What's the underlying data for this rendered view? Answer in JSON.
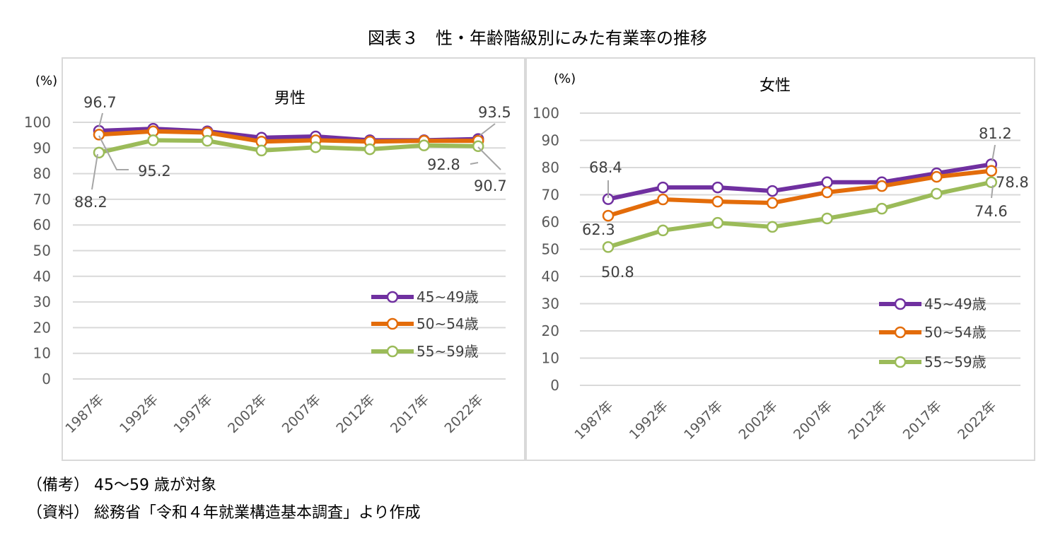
{
  "title": "図表３　性・年齢階級別にみた有業率の推移",
  "notes": [
    "（備考） 45～59 歳が対象",
    "（資料） 総務省「令和４年就業構造基本調査」より作成"
  ],
  "colors": {
    "45~49歳": "#7030a0",
    "50~54歳": "#e36c0a",
    "55~59歳": "#9bbb59",
    "grid": "#d9d9d9"
  },
  "chart_data": [
    {
      "type": "line",
      "title": "男性",
      "ylabel": "(%)",
      "ylim": [
        0,
        100
      ],
      "yticks": [
        0,
        10,
        20,
        30,
        40,
        50,
        60,
        70,
        80,
        90,
        100
      ],
      "grid": true,
      "legend": "bottom-right",
      "categories": [
        "1987年",
        "1992年",
        "1997年",
        "2002年",
        "2007年",
        "2012年",
        "2017年",
        "2022年"
      ],
      "series": [
        {
          "name": "45~49歳",
          "values": [
            96.7,
            97.5,
            96.5,
            94.0,
            94.5,
            93.0,
            93.0,
            93.5
          ]
        },
        {
          "name": "50~54歳",
          "values": [
            95.2,
            96.5,
            96.0,
            92.5,
            93.0,
            92.5,
            92.8,
            92.8
          ]
        },
        {
          "name": "55~59歳",
          "values": [
            88.2,
            93.0,
            92.8,
            89.0,
            90.3,
            89.5,
            91.0,
            90.7
          ]
        }
      ],
      "data_labels": [
        {
          "series": 0,
          "index": 0,
          "text": "96.7"
        },
        {
          "series": 1,
          "index": 0,
          "text": "95.2"
        },
        {
          "series": 2,
          "index": 0,
          "text": "88.2"
        },
        {
          "series": 0,
          "index": 7,
          "text": "93.5"
        },
        {
          "series": 1,
          "index": 7,
          "text": "92.8"
        },
        {
          "series": 2,
          "index": 7,
          "text": "90.7"
        }
      ]
    },
    {
      "type": "line",
      "title": "女性",
      "ylabel": "(%)",
      "ylim": [
        0,
        100
      ],
      "yticks": [
        0,
        10,
        20,
        30,
        40,
        50,
        60,
        70,
        80,
        90,
        100
      ],
      "grid": true,
      "legend": "bottom-right",
      "categories": [
        "1987年",
        "1992年",
        "1997年",
        "2002年",
        "2007年",
        "2012年",
        "2017年",
        "2022年"
      ],
      "series": [
        {
          "name": "45~49歳",
          "values": [
            68.4,
            72.7,
            72.7,
            71.4,
            74.6,
            74.6,
            77.9,
            81.2
          ]
        },
        {
          "name": "50~54歳",
          "values": [
            62.3,
            68.3,
            67.5,
            67.0,
            70.9,
            73.2,
            76.6,
            78.8
          ]
        },
        {
          "name": "55~59歳",
          "values": [
            50.8,
            56.9,
            59.7,
            58.2,
            61.3,
            64.9,
            70.4,
            74.6
          ]
        }
      ],
      "data_labels": [
        {
          "series": 0,
          "index": 0,
          "text": "68.4"
        },
        {
          "series": 1,
          "index": 0,
          "text": "62.3"
        },
        {
          "series": 2,
          "index": 0,
          "text": "50.8"
        },
        {
          "series": 0,
          "index": 7,
          "text": "81.2"
        },
        {
          "series": 1,
          "index": 7,
          "text": "78.8"
        },
        {
          "series": 2,
          "index": 7,
          "text": "74.6"
        }
      ]
    }
  ]
}
